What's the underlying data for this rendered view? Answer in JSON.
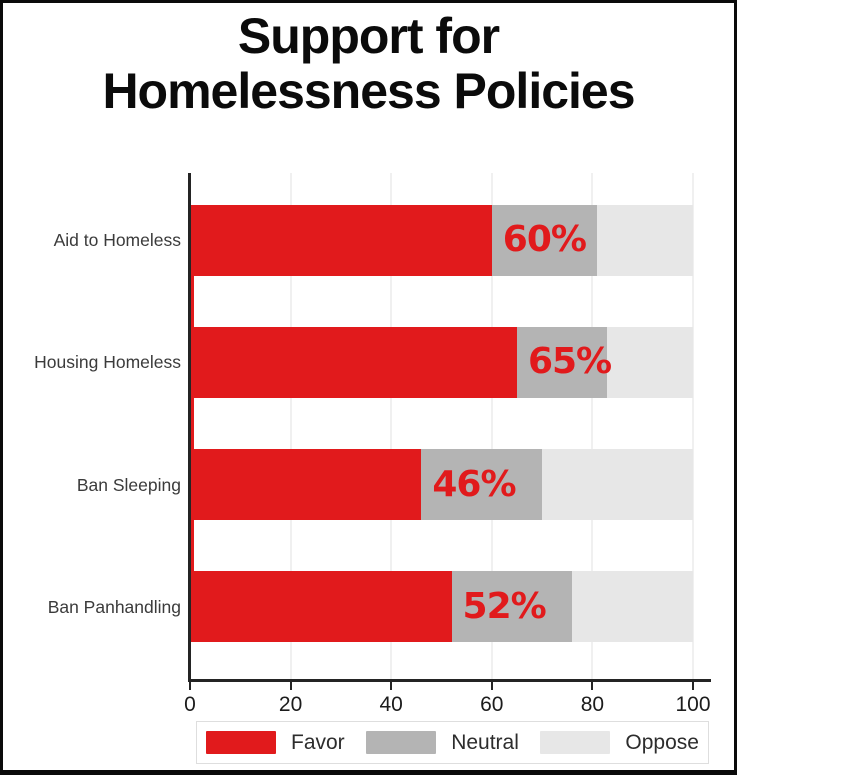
{
  "title": {
    "line1": "Support for",
    "line2": "Homelessness Policies"
  },
  "colors": {
    "favor": "#e11a1c",
    "neutral": "#b4b4b4",
    "oppose": "#e7e7e7",
    "value_label": "#e11a1c",
    "grid": "#f0f0f0",
    "axis": "#242424",
    "frame_border": "#0a0a0a"
  },
  "chart_data": {
    "type": "bar",
    "orientation": "horizontal",
    "stacked": true,
    "title": "Support for Homelessness Policies",
    "xlabel": "",
    "ylabel": "",
    "xlim": [
      0,
      100
    ],
    "x_ticks": [
      "0",
      "20",
      "40",
      "60",
      "80",
      "100"
    ],
    "x_tick_values": [
      0,
      20,
      40,
      60,
      80,
      100
    ],
    "grid": true,
    "legend_position": "bottom",
    "categories": [
      "Aid to Homeless",
      "Housing Homeless",
      "Ban Sleeping",
      "Ban Panhandling"
    ],
    "series": [
      {
        "name": "Favor",
        "values": [
          60,
          65,
          46,
          52
        ]
      },
      {
        "name": "Neutral",
        "values": [
          21,
          18,
          24,
          24
        ]
      },
      {
        "name": "Oppose",
        "values": [
          19,
          17,
          30,
          24
        ]
      }
    ],
    "bar_value_labels": [
      "60%",
      "65%",
      "46%",
      "52%"
    ],
    "legend": [
      {
        "label": "Favor",
        "color": "#e11a1c"
      },
      {
        "label": "Neutral",
        "color": "#b4b4b4"
      },
      {
        "label": "Oppose",
        "color": "#e7e7e7"
      }
    ]
  }
}
